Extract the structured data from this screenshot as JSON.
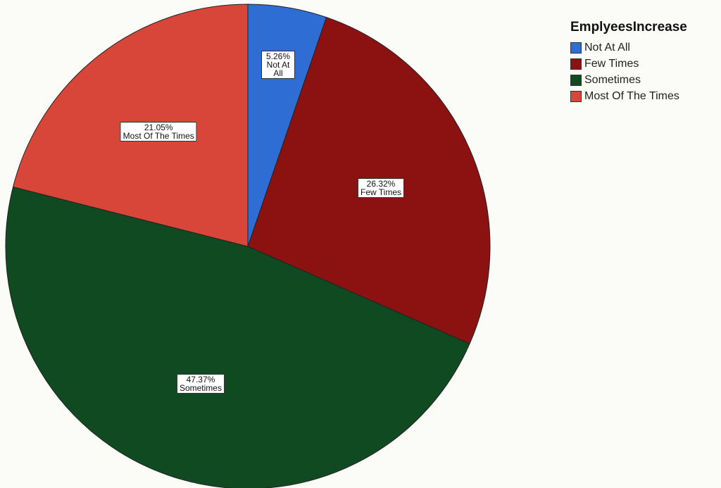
{
  "chart_data": {
    "type": "pie",
    "legend_title": "EmplyeesIncrease",
    "categories": [
      "Not At All",
      "Few Times",
      "Sometimes",
      "Most Of The Times"
    ],
    "values": [
      5.26,
      26.32,
      47.37,
      21.05
    ],
    "value_labels": [
      "5.26%",
      "26.32%",
      "47.37%",
      "21.05%"
    ],
    "colors": [
      "#2e6ed4",
      "#8c1212",
      "#0f4a20",
      "#d8463a"
    ],
    "legend": "top-right"
  }
}
